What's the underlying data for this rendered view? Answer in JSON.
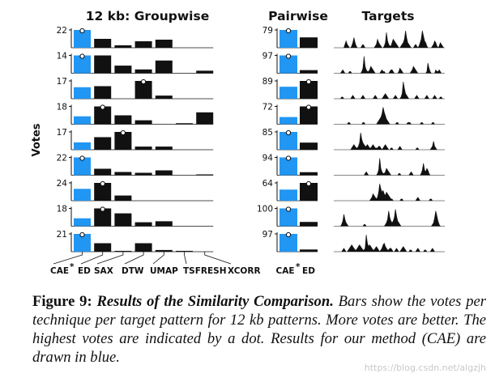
{
  "chart_data": {
    "type": "bar",
    "titles": {
      "groupwise": "12 kb: Groupwise",
      "pairwise": "Pairwise",
      "targets": "Targets"
    },
    "ylabel": "Votes",
    "group_categories": [
      "CAE",
      "ED",
      "SAX",
      "DTW",
      "UMAP",
      "TSFRESH",
      "XCORR"
    ],
    "pair_categories": [
      "CAE",
      "ED"
    ],
    "highlight_color": "#2196f3",
    "bar_color": "#111111",
    "rows": [
      {
        "group_max": 22,
        "group_values": [
          22,
          11,
          3,
          8,
          10,
          0,
          0
        ],
        "pair_max": 79,
        "pair_values": [
          79,
          46
        ]
      },
      {
        "group_max": 14,
        "group_values": [
          14,
          14,
          6,
          3,
          10,
          0,
          2
        ],
        "pair_max": 97,
        "pair_values": [
          97,
          17
        ]
      },
      {
        "group_max": 17,
        "group_values": [
          11,
          12,
          0,
          17,
          3,
          0,
          0
        ],
        "pair_max": 89,
        "pair_values": [
          60,
          89
        ]
      },
      {
        "group_max": 18,
        "group_values": [
          8,
          18,
          9,
          4,
          0,
          1,
          12
        ],
        "pair_max": 72,
        "pair_values": [
          29,
          72
        ]
      },
      {
        "group_max": 17,
        "group_values": [
          7,
          12,
          17,
          3,
          3,
          0,
          0
        ],
        "pair_max": 85,
        "pair_values": [
          85,
          34
        ]
      },
      {
        "group_max": 22,
        "group_values": [
          22,
          8,
          4,
          3,
          6,
          0,
          1
        ],
        "pair_max": 94,
        "pair_values": [
          94,
          16
        ]
      },
      {
        "group_max": 24,
        "group_values": [
          16,
          24,
          7,
          0,
          0,
          0,
          0
        ],
        "pair_max": 64,
        "pair_values": [
          40,
          64
        ]
      },
      {
        "group_max": 18,
        "group_values": [
          8,
          18,
          13,
          4,
          5,
          0,
          0
        ],
        "pair_max": 100,
        "pair_values": [
          100,
          24
        ]
      },
      {
        "group_max": 21,
        "group_values": [
          21,
          10,
          1,
          10,
          2,
          1,
          0
        ],
        "pair_max": 97,
        "pair_values": [
          97,
          12
        ]
      }
    ],
    "targets": [
      [
        0,
        0,
        0,
        0,
        0,
        0,
        0,
        0,
        0,
        0,
        2,
        4,
        2,
        1,
        0,
        0,
        1,
        3,
        6,
        3,
        1,
        0,
        0,
        0,
        0,
        1,
        2,
        1,
        0,
        0,
        0,
        0,
        0,
        0,
        0,
        0,
        0,
        1,
        2,
        5,
        3,
        2,
        1,
        0,
        0,
        1,
        3,
        9,
        4,
        2,
        1,
        1,
        3,
        5,
        4,
        3,
        2,
        1,
        0,
        0,
        1,
        2,
        3,
        5,
        10,
        6,
        3,
        2,
        1,
        0,
        0,
        0,
        1,
        2,
        1,
        0,
        1,
        3,
        5,
        10,
        7,
        4,
        3,
        1,
        0,
        0,
        0,
        0,
        1,
        2,
        4,
        3,
        1,
        0,
        1,
        3,
        2,
        1,
        0,
        0
      ],
      [
        0,
        0,
        0,
        0,
        0,
        0,
        0,
        1,
        2,
        1,
        0,
        0,
        0,
        0,
        1,
        1,
        0,
        0,
        0,
        0,
        0,
        0,
        0,
        0,
        0,
        1,
        3,
        10,
        4,
        2,
        1,
        1,
        2,
        4,
        3,
        2,
        1,
        0,
        0,
        0,
        0,
        0,
        1,
        2,
        1,
        1,
        0,
        0,
        0,
        0,
        1,
        2,
        2,
        1,
        0,
        0,
        0,
        0,
        1,
        3,
        2,
        1,
        0,
        0,
        0,
        0,
        0,
        0,
        0,
        1,
        2,
        4,
        3,
        2,
        1,
        0,
        0,
        0,
        0,
        0,
        0,
        0,
        0,
        1,
        6,
        3,
        1,
        0,
        0,
        0,
        0,
        2,
        1,
        1,
        2,
        1,
        0,
        0,
        0,
        0
      ],
      [
        0,
        0,
        0,
        0,
        0,
        0,
        0,
        1,
        1,
        0,
        0,
        0,
        0,
        0,
        0,
        0,
        1,
        2,
        1,
        0,
        0,
        0,
        0,
        0,
        0,
        1,
        2,
        1,
        0,
        0,
        0,
        0,
        0,
        0,
        0,
        0,
        1,
        2,
        1,
        0,
        0,
        0,
        0,
        0,
        1,
        2,
        3,
        2,
        1,
        0,
        0,
        0,
        0,
        0,
        1,
        2,
        1,
        0,
        0,
        0,
        1,
        3,
        10,
        6,
        3,
        2,
        1,
        0,
        0,
        0,
        0,
        0,
        0,
        1,
        2,
        1,
        0,
        0,
        0,
        0,
        0,
        0,
        1,
        2,
        1,
        0,
        0,
        0,
        0,
        1,
        2,
        1,
        0,
        0,
        0,
        1,
        1,
        0,
        0,
        0
      ],
      [
        0,
        0,
        0,
        0,
        0,
        0,
        0,
        0,
        0,
        0,
        0,
        0,
        0,
        1,
        1,
        0,
        0,
        0,
        0,
        0,
        0,
        0,
        0,
        0,
        0,
        0,
        1,
        1,
        0,
        0,
        0,
        0,
        0,
        0,
        0,
        0,
        0,
        0,
        0,
        1,
        2,
        3,
        4,
        6,
        10,
        7,
        5,
        3,
        2,
        1,
        0,
        0,
        0,
        0,
        0,
        0,
        1,
        1,
        0,
        0,
        0,
        0,
        0,
        0,
        0,
        0,
        1,
        1,
        1,
        0,
        0,
        0,
        0,
        0,
        0,
        0,
        0,
        0,
        1,
        1,
        0,
        0,
        0,
        0,
        0,
        0,
        0,
        0,
        1,
        1,
        0,
        0,
        0,
        0,
        0,
        0,
        0,
        0,
        0,
        0
      ],
      [
        0,
        0,
        0,
        0,
        0,
        0,
        0,
        0,
        0,
        0,
        0,
        0,
        0,
        0,
        0,
        0,
        1,
        2,
        3,
        2,
        1,
        1,
        2,
        4,
        10,
        6,
        4,
        3,
        2,
        2,
        3,
        2,
        1,
        1,
        2,
        3,
        2,
        1,
        1,
        1,
        2,
        2,
        1,
        0,
        1,
        2,
        3,
        2,
        1,
        0,
        0,
        1,
        1,
        0,
        0,
        0,
        0,
        0,
        1,
        2,
        1,
        0,
        0,
        0,
        0,
        0,
        0,
        0,
        0,
        0,
        0,
        0,
        0,
        0,
        1,
        1,
        0,
        0,
        0,
        0,
        0,
        0,
        0,
        0,
        0,
        0,
        0,
        1,
        2,
        5,
        2,
        1,
        0,
        0,
        0,
        0,
        0,
        0,
        0,
        0
      ],
      [
        0,
        0,
        0,
        0,
        0,
        0,
        0,
        0,
        0,
        0,
        0,
        0,
        0,
        0,
        0,
        0,
        0,
        0,
        0,
        0,
        0,
        0,
        0,
        0,
        0,
        0,
        0,
        0,
        1,
        2,
        1,
        0,
        0,
        0,
        0,
        0,
        0,
        0,
        0,
        1,
        3,
        10,
        4,
        2,
        1,
        1,
        2,
        4,
        3,
        2,
        1,
        0,
        0,
        0,
        0,
        0,
        0,
        0,
        1,
        1,
        0,
        0,
        0,
        0,
        0,
        0,
        0,
        0,
        1,
        2,
        1,
        0,
        0,
        0,
        0,
        0,
        0,
        0,
        1,
        3,
        7,
        3,
        2,
        4,
        3,
        1,
        0,
        0,
        0,
        0,
        0,
        0,
        0,
        0,
        0,
        0,
        0,
        0,
        0,
        0
      ],
      [
        0,
        0,
        0,
        0,
        0,
        0,
        0,
        0,
        0,
        0,
        0,
        0,
        0,
        0,
        0,
        0,
        0,
        0,
        0,
        0,
        0,
        0,
        0,
        0,
        0,
        0,
        0,
        0,
        0,
        0,
        0,
        0,
        0,
        1,
        2,
        4,
        3,
        2,
        1,
        2,
        5,
        10,
        7,
        5,
        6,
        4,
        3,
        5,
        4,
        3,
        2,
        1,
        1,
        0,
        0,
        0,
        0,
        0,
        0,
        0,
        1,
        1,
        0,
        0,
        0,
        0,
        0,
        0,
        0,
        0,
        0,
        0,
        0,
        0,
        1,
        2,
        1,
        0,
        0,
        0,
        0,
        0,
        0,
        0,
        0,
        0,
        1,
        1,
        0,
        0,
        0,
        0,
        0,
        0,
        0,
        0,
        0,
        0,
        0,
        0
      ],
      [
        0,
        0,
        0,
        0,
        0,
        0,
        0,
        1,
        3,
        7,
        4,
        2,
        1,
        0,
        0,
        0,
        0,
        0,
        0,
        0,
        0,
        0,
        0,
        0,
        0,
        0,
        0,
        1,
        1,
        0,
        0,
        0,
        0,
        0,
        0,
        0,
        0,
        0,
        0,
        0,
        0,
        0,
        0,
        0,
        0,
        0,
        1,
        2,
        4,
        9,
        5,
        3,
        2,
        3,
        5,
        10,
        6,
        3,
        2,
        1,
        0,
        0,
        0,
        0,
        0,
        0,
        0,
        0,
        0,
        0,
        0,
        0,
        0,
        0,
        0,
        0,
        0,
        0,
        0,
        0,
        0,
        0,
        0,
        0,
        0,
        0,
        0,
        0,
        1,
        2,
        5,
        9,
        6,
        3,
        1,
        0,
        0,
        0,
        0,
        0
      ],
      [
        0,
        0,
        0,
        0,
        0,
        0,
        0,
        0,
        1,
        2,
        1,
        0,
        0,
        1,
        2,
        3,
        4,
        3,
        2,
        1,
        1,
        2,
        3,
        4,
        3,
        2,
        1,
        1,
        2,
        10,
        5,
        3,
        4,
        3,
        2,
        1,
        1,
        2,
        3,
        2,
        1,
        0,
        1,
        2,
        4,
        5,
        3,
        2,
        1,
        1,
        2,
        2,
        1,
        0,
        0,
        1,
        2,
        1,
        0,
        0,
        1,
        2,
        3,
        2,
        1,
        0,
        0,
        0,
        1,
        1,
        0,
        0,
        0,
        0,
        1,
        2,
        1,
        0,
        0,
        0,
        0,
        1,
        1,
        0,
        0,
        0,
        0,
        1,
        2,
        1,
        0,
        0,
        0,
        0,
        0,
        0,
        0,
        0,
        0,
        0
      ]
    ]
  },
  "caption": {
    "label": "Figure 9:",
    "title": "Results of the Similarity Comparison.",
    "body": "Bars show the votes per technique per target pattern for 12 kb patterns. More votes are better. The highest votes are indicated by a dot. Results for our method (CAE) are drawn in blue."
  },
  "watermark": "https://blog.csdn.net/algzjh"
}
